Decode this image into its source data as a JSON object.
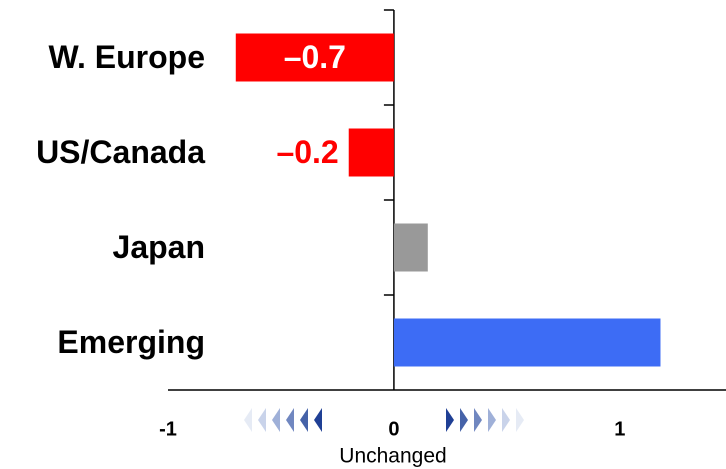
{
  "chart_data": {
    "type": "hbar",
    "categories": [
      "W. Europe",
      "US/Canada",
      "Japan",
      "Emerging"
    ],
    "values": [
      -0.7,
      -0.2,
      0.15,
      1.18
    ],
    "value_labels": [
      "–0.7",
      "–0.2",
      null,
      null
    ],
    "colors": [
      "#ff0000",
      "#ff0000",
      "#999999",
      "#3d6cf5"
    ],
    "xlim": [
      -1,
      1.47
    ],
    "xticks": [
      -1,
      0,
      1
    ],
    "annotation": "Unchanged"
  }
}
